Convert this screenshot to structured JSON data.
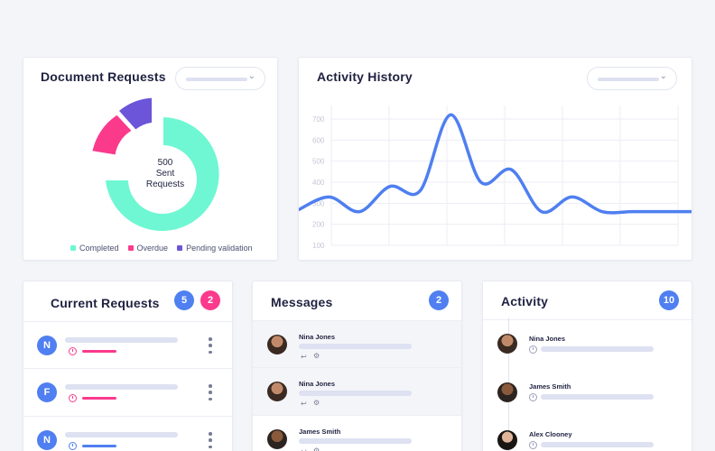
{
  "document_requests": {
    "title": "Document Requests",
    "center_value": "500",
    "center_line1": "Sent",
    "center_line2": "Requests",
    "legend": [
      {
        "label": "Completed",
        "color": "#6ef7d2"
      },
      {
        "label": "Overdue",
        "color": "#fb3a8c"
      },
      {
        "label": "Pending validation",
        "color": "#6c55d9"
      }
    ]
  },
  "activity_history": {
    "title": "Activity History",
    "y_ticks": [
      "700",
      "600",
      "500",
      "400",
      "300",
      "200",
      "100"
    ]
  },
  "chart_data": {
    "type": "line",
    "ylim": [
      100,
      700
    ],
    "y_ticks": [
      100,
      200,
      300,
      400,
      500,
      600,
      700
    ],
    "series": [
      {
        "color": "#4f7ff0",
        "x": [
          0,
          0.5,
          1,
          1.5,
          2,
          2.5,
          3,
          3.5,
          4,
          4.5,
          5,
          5.5,
          6,
          6.5
        ],
        "values": [
          270,
          330,
          260,
          380,
          360,
          720,
          400,
          460,
          260,
          330,
          260,
          260,
          260,
          260
        ]
      }
    ]
  },
  "current_requests": {
    "title": "Current Requests",
    "badge_blue": "5",
    "badge_red": "2",
    "items": [
      {
        "initial": "N",
        "accent": "#fb3a8c"
      },
      {
        "initial": "F",
        "accent": "#fb3a8c"
      },
      {
        "initial": "N",
        "accent": "#4f7ff0"
      }
    ]
  },
  "messages": {
    "title": "Messages",
    "badge": "2",
    "items": [
      {
        "name": "Nina Jones",
        "reply_icon": "reply-icon",
        "settings_icon": "gear-icon"
      },
      {
        "name": "Nina Jones",
        "reply_icon": "reply-icon",
        "settings_icon": "gear-icon"
      },
      {
        "name": "James Smith",
        "reply_icon": "reply-icon",
        "settings_icon": "gear-icon"
      }
    ]
  },
  "activity": {
    "title": "Activity",
    "badge": "10",
    "items": [
      {
        "name": "Nina Jones"
      },
      {
        "name": "James Smith"
      },
      {
        "name": "Alex Clooney"
      }
    ]
  },
  "colors": {
    "blue": "#4f7ff0",
    "pink": "#fb3a8c",
    "purple": "#6c55d9",
    "mint": "#6ef7d2"
  }
}
